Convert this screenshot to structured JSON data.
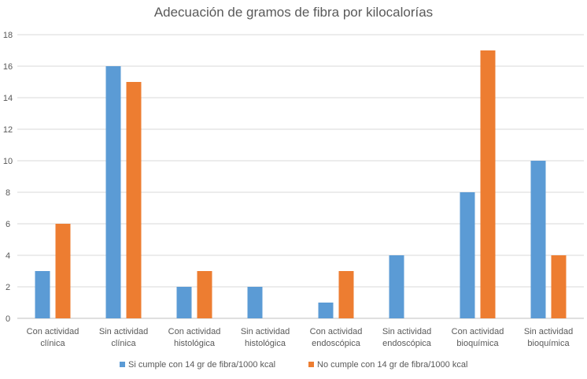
{
  "chart_data": {
    "type": "bar",
    "title": "Adecuación de gramos de fibra por kilocalorías",
    "xlabel": "",
    "ylabel": "",
    "ylim": [
      0,
      18
    ],
    "yticks": [
      0,
      2,
      4,
      6,
      8,
      10,
      12,
      14,
      16,
      18
    ],
    "grid": true,
    "legend_position": "bottom",
    "categories": [
      [
        "Con actividad",
        "clínica"
      ],
      [
        "Sin actividad",
        "clínica"
      ],
      [
        "Con actividad",
        "histológica"
      ],
      [
        "Sin actividad",
        "histológica"
      ],
      [
        "Con actividad",
        "endoscópica"
      ],
      [
        "Sin actividad",
        "endoscópica"
      ],
      [
        "Con actividad",
        "bioquímica"
      ],
      [
        "Sin actividad",
        "bioquímica"
      ]
    ],
    "series": [
      {
        "name": "Si cumple con 14 gr de fibra/1000 kcal",
        "color": "#5b9bd5",
        "values": [
          3,
          16,
          2,
          2,
          1,
          4,
          8,
          10
        ]
      },
      {
        "name": "No cumple con 14 gr de fibra/1000 kcal",
        "color": "#ed7d31",
        "values": [
          6,
          15,
          3,
          0,
          3,
          0,
          17,
          4
        ]
      }
    ]
  }
}
